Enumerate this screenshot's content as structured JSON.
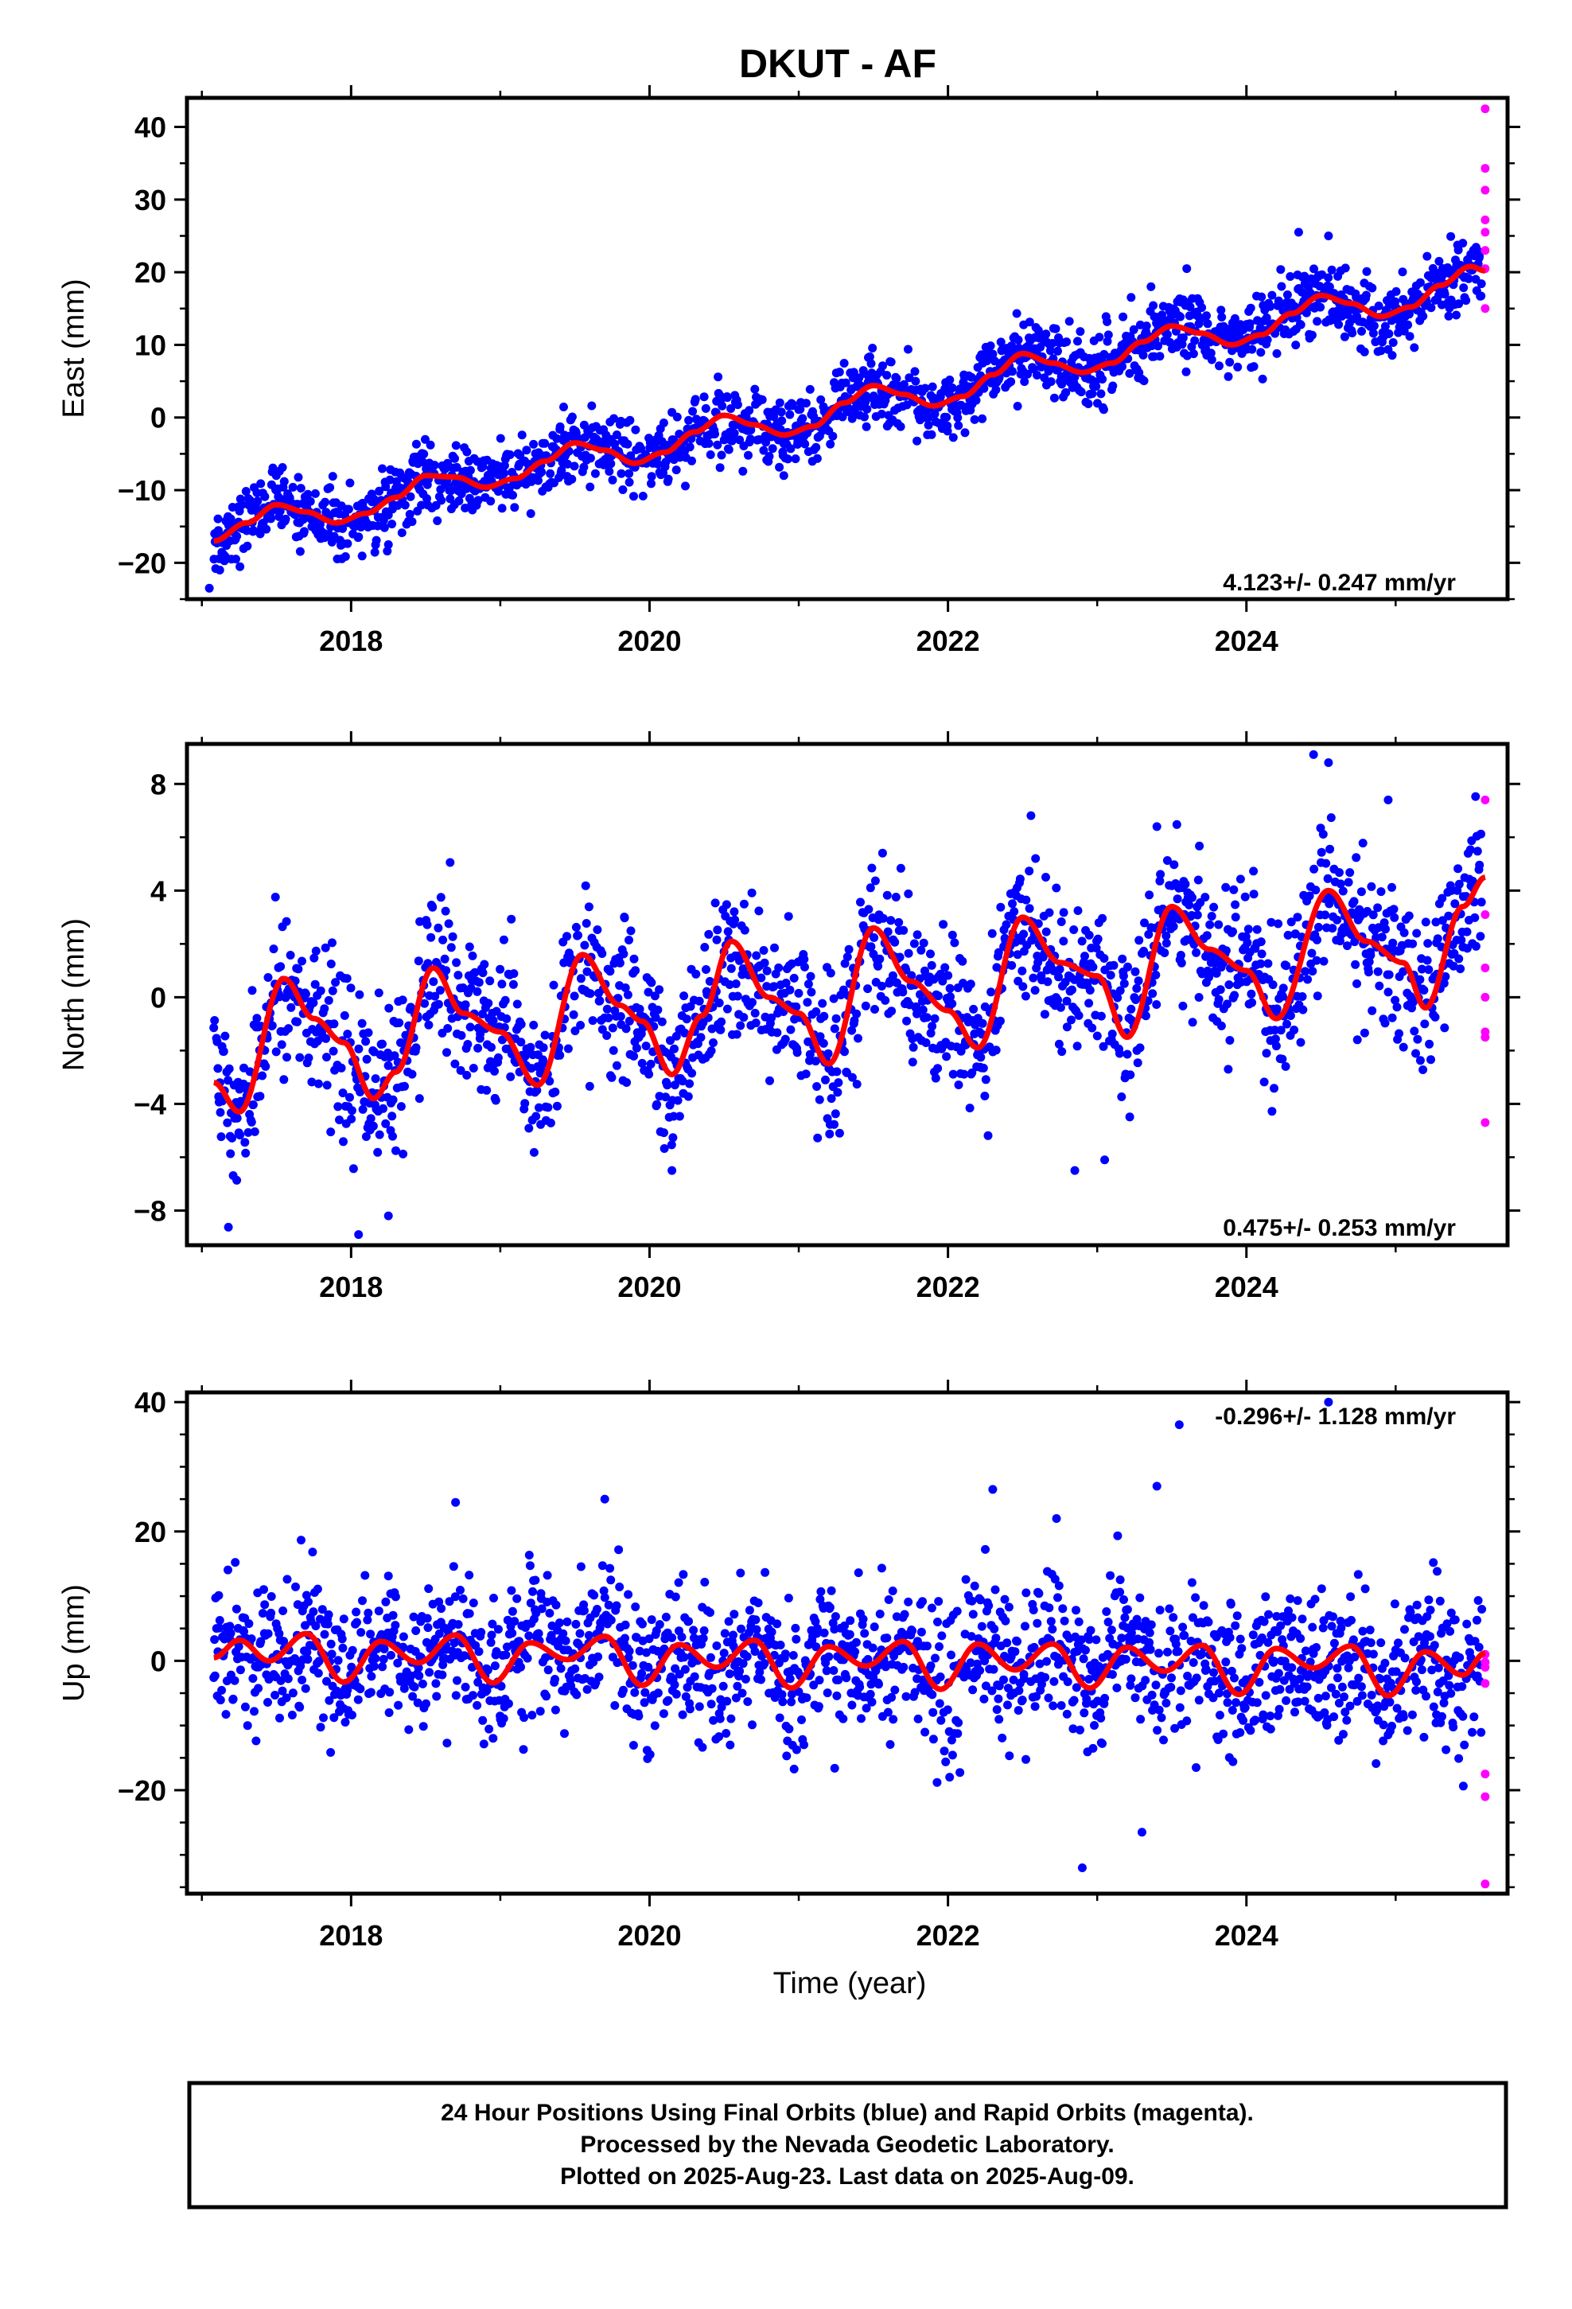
{
  "title": "DKUT - AF",
  "xlabel": "Time (year)",
  "colors": {
    "final": "#0000ff",
    "rapid": "#ff00ff",
    "model": "#ff0000"
  },
  "footer": {
    "line1": "24 Hour Positions Using Final Orbits (blue) and Rapid Orbits (magenta).",
    "line2": "Processed by the Nevada Geodetic Laboratory.",
    "line3": "Plotted on 2025-Aug-23. Last data on 2025-Aug-09."
  },
  "chart_data": [
    {
      "type": "scatter",
      "title": "DKUT - AF",
      "xlabel": "",
      "ylabel": "East (mm)",
      "xlim": [
        2016.9,
        2025.75
      ],
      "ylim": [
        -25,
        44
      ],
      "xticks": [
        "2018",
        "2020",
        "2022",
        "2024"
      ],
      "yticks": [
        "−20",
        "−10",
        "0",
        "10",
        "20",
        "30",
        "40"
      ],
      "rate_label": "4.123+/- 0.247 mm/yr",
      "model": {
        "name": "fit",
        "x": [
          2017.08,
          2017.3,
          2017.5,
          2017.7,
          2017.9,
          2018.1,
          2018.3,
          2018.5,
          2018.7,
          2018.9,
          2019.1,
          2019.3,
          2019.5,
          2019.7,
          2019.9,
          2020.1,
          2020.3,
          2020.5,
          2020.7,
          2020.9,
          2021.1,
          2021.3,
          2021.5,
          2021.7,
          2021.9,
          2022.1,
          2022.3,
          2022.5,
          2022.7,
          2022.9,
          2023.1,
          2023.3,
          2023.5,
          2023.7,
          2023.9,
          2024.1,
          2024.3,
          2024.5,
          2024.7,
          2024.9,
          2025.1,
          2025.3,
          2025.5,
          2025.6
        ],
        "y": [
          -17,
          -14.5,
          -12,
          -13,
          -14.5,
          -13.2,
          -11,
          -8,
          -8.2,
          -9.6,
          -8.4,
          -6,
          -3.5,
          -4.5,
          -6.3,
          -4.8,
          -2,
          0.3,
          -1,
          -2.4,
          -1.2,
          2,
          4.4,
          3.2,
          1.6,
          2.9,
          5.9,
          8.8,
          7.5,
          6.2,
          7.5,
          10.4,
          12.6,
          11.6,
          10,
          11.4,
          14.3,
          16.8,
          15.7,
          13.9,
          15.2,
          18.2,
          20.8,
          20.2
        ]
      },
      "final": {
        "scatter": 2.4,
        "outlier_x": [
          2017.05,
          2017.12,
          2018.25,
          2020.9,
          2023.6,
          2024.35,
          2024.55,
          2025.45
        ],
        "outlier_y": [
          -23.5,
          -21,
          -17.5,
          -8,
          20.5,
          25.5,
          25,
          24
        ]
      },
      "rapid": {
        "x": [
          2025.6,
          2025.6,
          2025.6,
          2025.6,
          2025.6,
          2025.6,
          2025.6,
          2025.6
        ],
        "y": [
          42.5,
          34.3,
          31.3,
          27.2,
          25.5,
          23,
          20.5,
          15
        ]
      }
    },
    {
      "type": "scatter",
      "xlabel": "",
      "ylabel": "North (mm)",
      "xlim": [
        2016.9,
        2025.75
      ],
      "ylim": [
        -9.3,
        9.5
      ],
      "xticks": [
        "2018",
        "2020",
        "2022",
        "2024"
      ],
      "yticks": [
        "−8",
        "−4",
        "0",
        "4",
        "8"
      ],
      "rate_label": "0.475+/- 0.253 mm/yr",
      "model": {
        "name": "fit",
        "x": [
          2017.08,
          2017.25,
          2017.55,
          2017.75,
          2017.95,
          2018.15,
          2018.3,
          2018.55,
          2018.75,
          2019.0,
          2019.25,
          2019.55,
          2019.8,
          2019.95,
          2020.15,
          2020.35,
          2020.55,
          2020.8,
          2021.0,
          2021.2,
          2021.5,
          2021.75,
          2022.0,
          2022.2,
          2022.5,
          2022.75,
          2023.0,
          2023.2,
          2023.5,
          2023.75,
          2024.0,
          2024.2,
          2024.55,
          2024.8,
          2025.05,
          2025.2,
          2025.45,
          2025.6
        ],
        "y": [
          -3.2,
          -4.3,
          0.7,
          -0.8,
          -1.7,
          -3.8,
          -2.8,
          1.1,
          -0.6,
          -1.3,
          -3.3,
          1.6,
          -0.3,
          -0.9,
          -2.9,
          -0.7,
          2.1,
          0,
          -0.6,
          -2.5,
          2.6,
          0.6,
          -0.5,
          -1.9,
          3,
          1.3,
          0.8,
          -1.5,
          3.4,
          1.8,
          1,
          -0.8,
          4,
          2.1,
          1.3,
          -0.4,
          3.4,
          4.5
        ]
      },
      "final": {
        "scatter": 1.4,
        "outlier_x": [
          2018.05,
          2018.25,
          2020.15,
          2022.85,
          2023.05,
          2023.4,
          2024.45,
          2024.55,
          2024.95
        ],
        "outlier_y": [
          -8.9,
          -8.2,
          -6.5,
          -6.5,
          -6.1,
          6.4,
          9.1,
          8.8,
          7.4
        ]
      },
      "rapid": {
        "x": [
          2025.6,
          2025.6,
          2025.6,
          2025.6,
          2025.6,
          2025.6,
          2025.6
        ],
        "y": [
          7.4,
          3.1,
          1.1,
          0,
          -1.3,
          -1.5,
          -4.7
        ]
      }
    },
    {
      "type": "scatter",
      "xlabel": "Time (year)",
      "ylabel": "Up (mm)",
      "xlim": [
        2016.9,
        2025.75
      ],
      "ylim": [
        -36,
        41.5
      ],
      "xticks": [
        "2018",
        "2020",
        "2022",
        "2024"
      ],
      "yticks": [
        "−20",
        "0",
        "20",
        "40"
      ],
      "rate_label": "-0.296+/- 1.128 mm/yr",
      "model": {
        "name": "fit",
        "x": [
          2017.08,
          2017.25,
          2017.45,
          2017.7,
          2017.95,
          2018.2,
          2018.45,
          2018.7,
          2018.95,
          2019.2,
          2019.45,
          2019.7,
          2019.95,
          2020.2,
          2020.45,
          2020.7,
          2020.95,
          2021.2,
          2021.45,
          2021.7,
          2021.95,
          2022.2,
          2022.45,
          2022.7,
          2022.95,
          2023.2,
          2023.45,
          2023.7,
          2023.95,
          2024.2,
          2024.45,
          2024.7,
          2024.95,
          2025.2,
          2025.45,
          2025.6
        ],
        "y": [
          0.5,
          3.2,
          0,
          4.2,
          -3.3,
          3,
          -0.3,
          4,
          -3.4,
          2.8,
          0.2,
          3.8,
          -3.8,
          2.5,
          -1,
          3.2,
          -4.2,
          2.2,
          -0.8,
          3,
          -4.4,
          2.6,
          -1.4,
          2.6,
          -4.2,
          2.1,
          -1.6,
          2.4,
          -5.2,
          1.9,
          -1.1,
          2.3,
          -5.4,
          1.4,
          -2.2,
          1.2
        ]
      },
      "final": {
        "scatter": 5.5,
        "outlier_x": [
          2018.7,
          2019.7,
          2022.3,
          2022.9,
          2023.3,
          2023.4,
          2023.55,
          2024.55
        ],
        "outlier_y": [
          24.5,
          25,
          26.5,
          -32,
          -26.5,
          27,
          36.5,
          40
        ]
      },
      "rapid": {
        "x": [
          2025.6,
          2025.6,
          2025.6,
          2025.6,
          2025.6,
          2025.6,
          2025.6
        ],
        "y": [
          1,
          -1,
          -3.5,
          -17.5,
          -21,
          -34.5,
          -0.2
        ]
      }
    }
  ]
}
